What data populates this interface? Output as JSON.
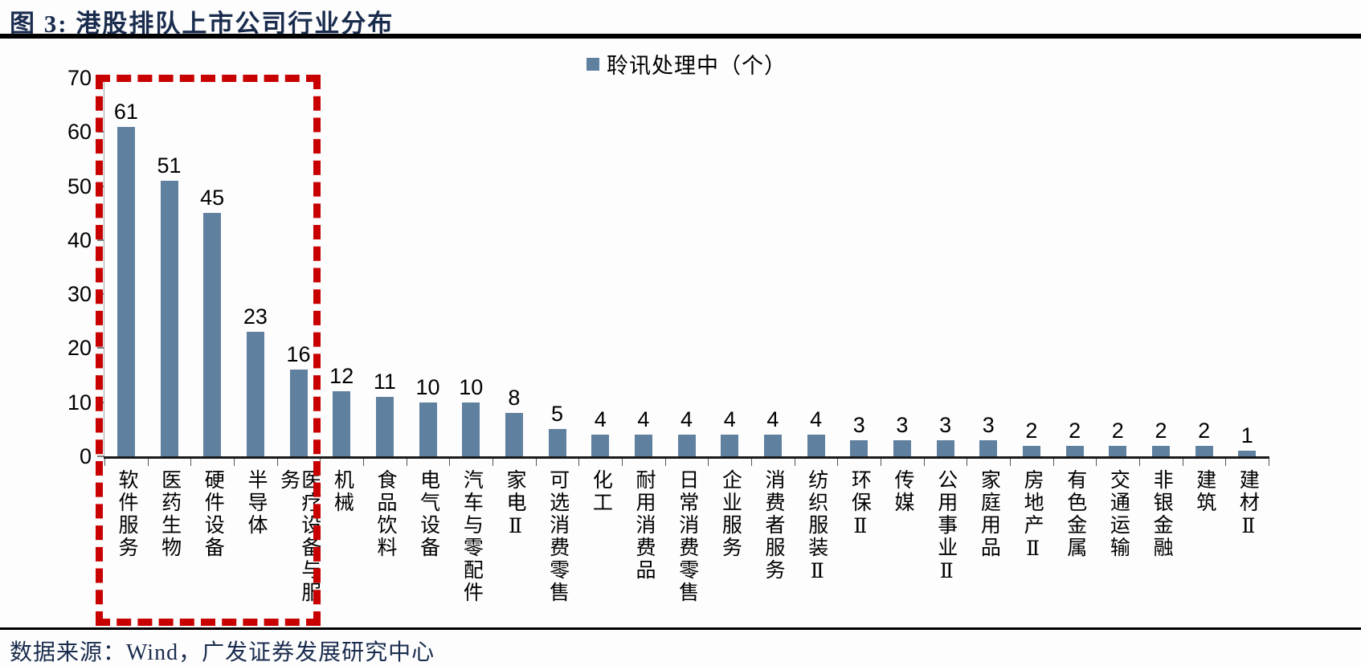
{
  "header": {
    "title": "图 3: 港股排队上市公司行业分布"
  },
  "legend": {
    "label": "聆讯处理中（个）"
  },
  "footer": {
    "source": "数据来源：Wind，广发证券发展研究中心"
  },
  "colors": {
    "bar": "#60809f",
    "highlight_box": "#c80000",
    "navy_text": "#1a2c4e"
  },
  "chart_data": {
    "type": "bar",
    "title": "港股排队上市公司行业分布",
    "legend_entries": [
      "聆讯处理中（个）"
    ],
    "legend_position": "top-center",
    "grid": false,
    "categories": [
      "软件服务",
      "医药生物",
      "硬件设备",
      "半导体",
      "医疗设备与服务",
      "机械",
      "食品饮料",
      "电气设备",
      "汽车与零配件",
      "家电Ⅱ",
      "可选消费零售",
      "化工",
      "耐用消费品",
      "日常消费零售",
      "企业服务",
      "消费者服务",
      "纺织服装Ⅱ",
      "环保Ⅱ",
      "传媒",
      "公用事业Ⅱ",
      "家庭用品",
      "房地产Ⅱ",
      "有色金属",
      "交通运输",
      "非银金融",
      "建筑",
      "建材Ⅱ"
    ],
    "values": [
      61,
      51,
      45,
      23,
      16,
      12,
      11,
      10,
      10,
      8,
      5,
      4,
      4,
      4,
      4,
      4,
      4,
      3,
      3,
      3,
      3,
      2,
      2,
      2,
      2,
      2,
      1
    ],
    "xlabel": "",
    "ylabel": "",
    "ylim": [
      0,
      70
    ],
    "yticks": [
      0,
      10,
      20,
      30,
      40,
      50,
      60,
      70
    ],
    "highlight": {
      "style": "red-dashed-box",
      "covers_categories": [
        "软件服务",
        "医药生物",
        "硬件设备",
        "半导体",
        "医疗设备与服务"
      ]
    }
  }
}
